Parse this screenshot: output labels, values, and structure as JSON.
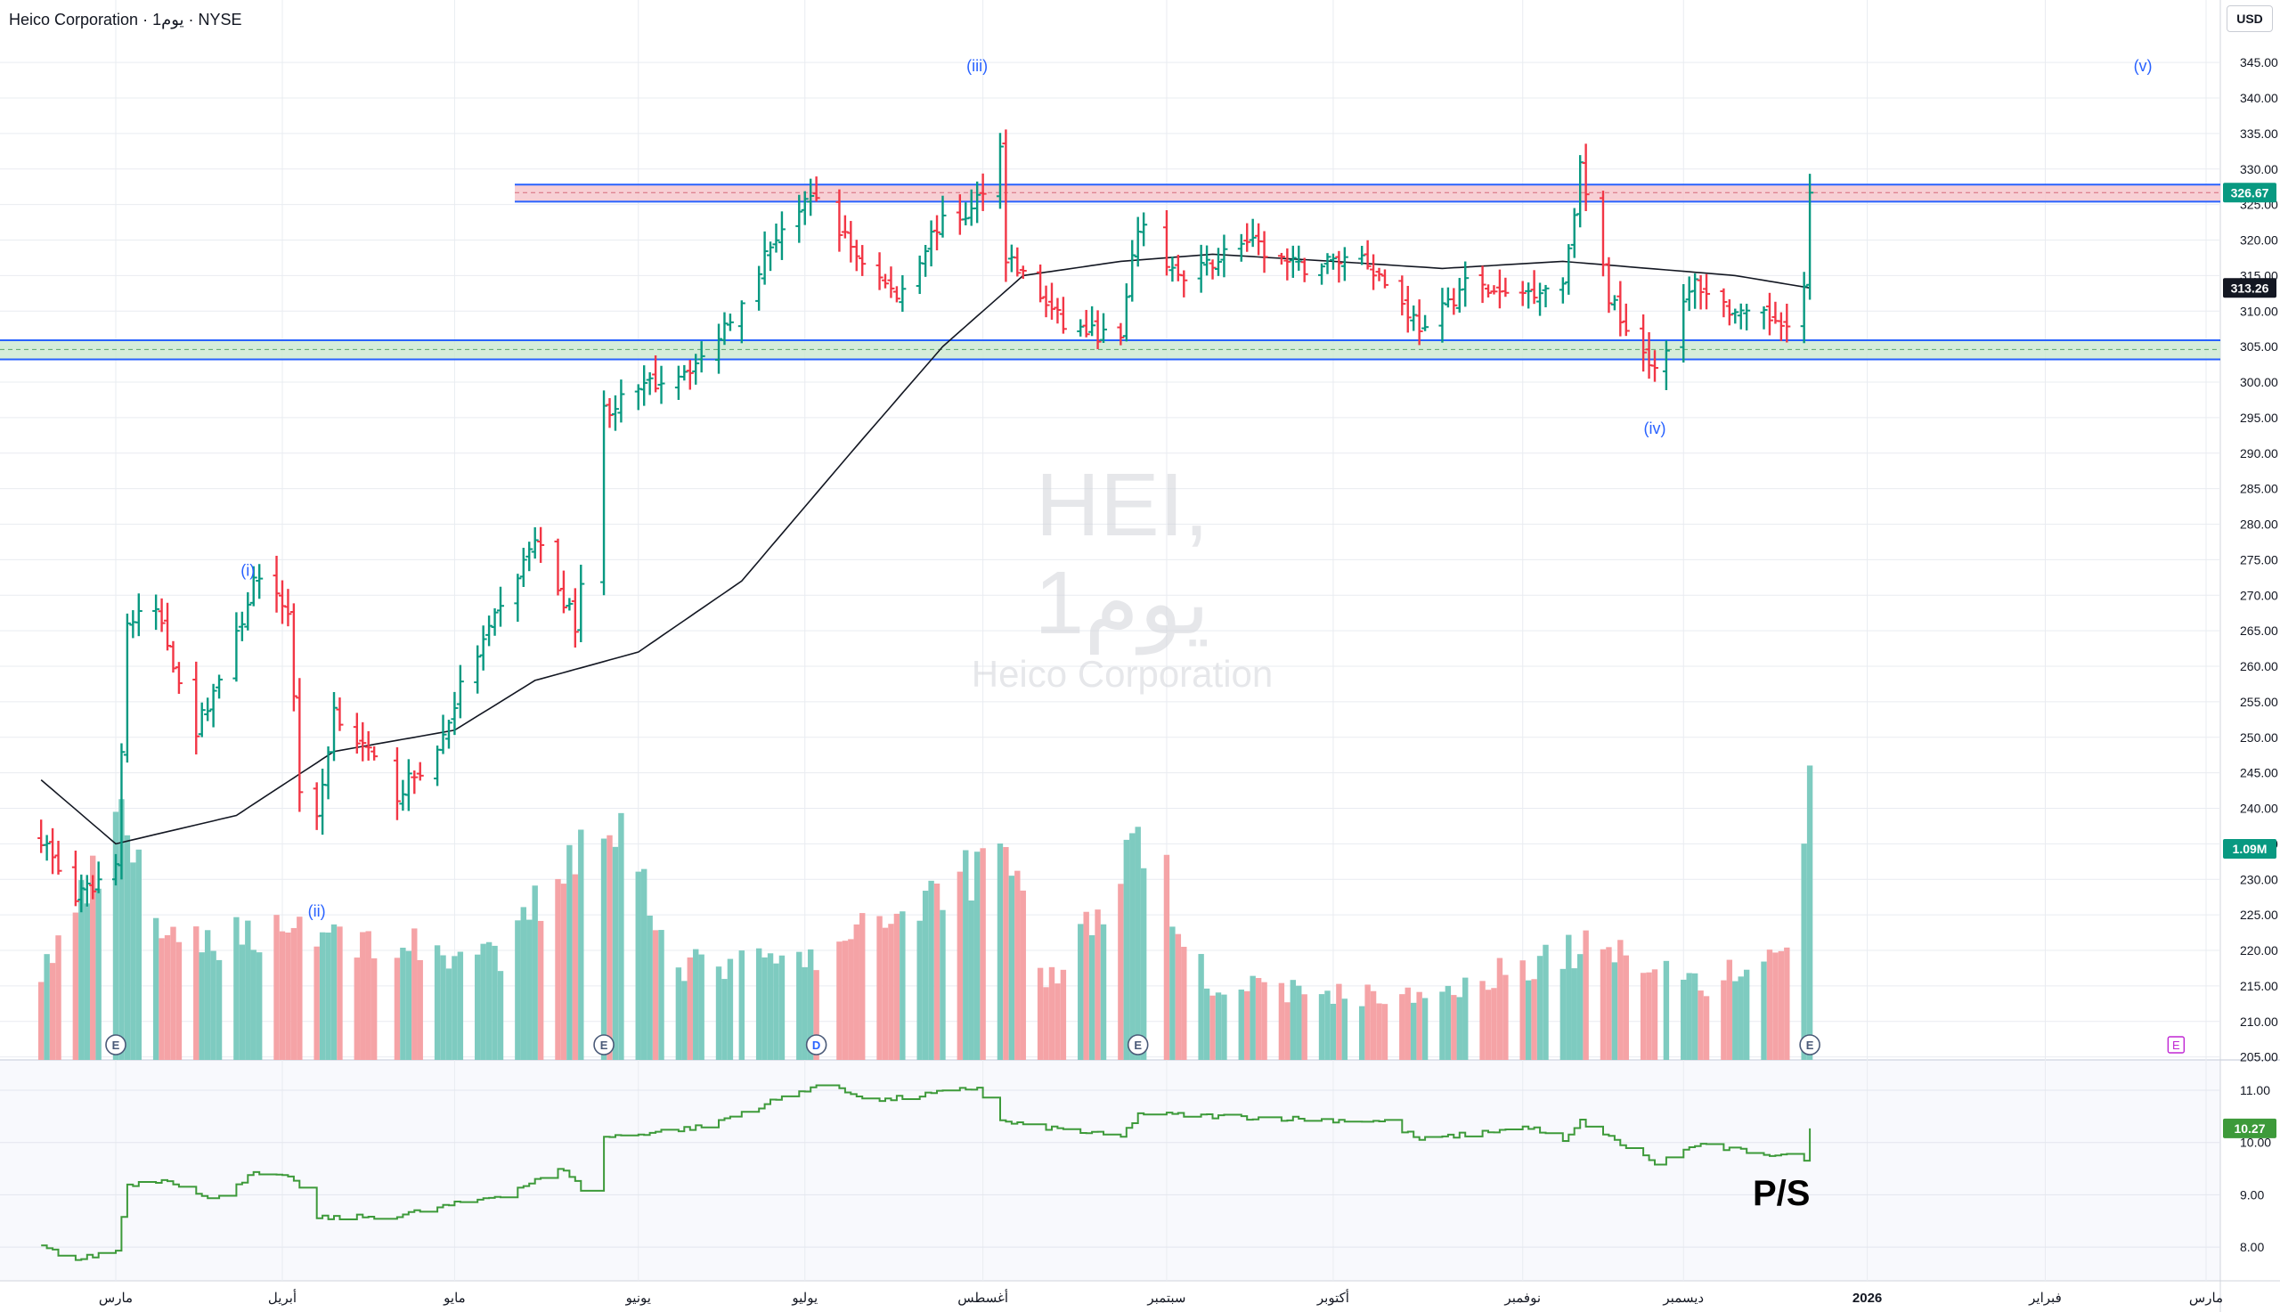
{
  "header": {
    "symbol_title": "Heico Corporation · 1يوم · NYSE",
    "currency": "USD"
  },
  "watermark": {
    "symbol": "HEI, 1يوم",
    "name": "Heico Corporation"
  },
  "indicator_label": "P/S",
  "colors": {
    "up": "#089981",
    "down": "#f23645",
    "vol_up": "#7ecbc0",
    "vol_down": "#f5a3a6",
    "sma": "#131722",
    "ps_line": "#3d9a3a",
    "band_line": "#2962ff",
    "band_fill_top": "#f6c7cc",
    "band_fill_bottom": "#cfead4",
    "wave_label": "#2962ff",
    "last_price_tag": "#089981",
    "sma_tag": "#131722",
    "grid": "#e9ecf1",
    "bg_main": "#ffffff",
    "bg_indicator": "#f8f9fd"
  },
  "chart_data": {
    "type": "ohlc",
    "title": "Heico Corporation · 1يوم · NYSE",
    "symbol": "HEI",
    "timeframe": "1يوم",
    "y_axis": {
      "range": [
        205,
        348
      ],
      "ticks": [
        "345.00",
        "340.00",
        "335.00",
        "330.00",
        "325.00",
        "320.00",
        "315.00",
        "310.00",
        "305.00",
        "300.00",
        "295.00",
        "290.00",
        "285.00",
        "280.00",
        "275.00",
        "270.00",
        "265.00",
        "260.00",
        "255.00",
        "250.00",
        "245.00",
        "240.00",
        "235.00",
        "230.00",
        "225.00",
        "220.00",
        "215.00",
        "210.00",
        "205.00"
      ]
    },
    "x_axis": {
      "labels": [
        {
          "label": "مارس",
          "date": "2025-03-03"
        },
        {
          "label": "أبريل",
          "date": "2025-04-01"
        },
        {
          "label": "مايو",
          "date": "2025-05-01"
        },
        {
          "label": "يونيو",
          "date": "2025-06-02"
        },
        {
          "label": "يوليو",
          "date": "2025-07-01"
        },
        {
          "label": "أغسطس",
          "date": "2025-08-01"
        },
        {
          "label": "سبتمبر",
          "date": "2025-09-02"
        },
        {
          "label": "أكتوبر",
          "date": "2025-10-01"
        },
        {
          "label": "نوفمبر",
          "date": "2025-11-03"
        },
        {
          "label": "ديسمبر",
          "date": "2025-12-01"
        },
        {
          "label": "2026",
          "date": "2026-01-02"
        },
        {
          "label": "فبراير",
          "date": "2026-02-02"
        },
        {
          "label": "مارس",
          "date": "2026-03-02"
        }
      ]
    },
    "price_anchors": [
      {
        "date": "2025-02-18",
        "close": 236
      },
      {
        "date": "2025-02-24",
        "close": 227
      },
      {
        "date": "2025-03-03",
        "close": 232
      },
      {
        "date": "2025-03-05",
        "close": 266
      },
      {
        "date": "2025-03-10",
        "close": 268
      },
      {
        "date": "2025-03-17",
        "close": 251
      },
      {
        "date": "2025-03-24",
        "close": 264
      },
      {
        "date": "2025-03-27",
        "close": 272
      },
      {
        "date": "2025-04-02",
        "close": 268
      },
      {
        "date": "2025-04-04",
        "close": 243
      },
      {
        "date": "2025-04-07",
        "close": 238
      },
      {
        "date": "2025-04-10",
        "close": 254
      },
      {
        "date": "2025-04-21",
        "close": 242
      },
      {
        "date": "2025-04-28",
        "close": 248
      },
      {
        "date": "2025-05-02",
        "close": 257
      },
      {
        "date": "2025-05-09",
        "close": 268
      },
      {
        "date": "2025-05-15",
        "close": 278
      },
      {
        "date": "2025-05-22",
        "close": 266
      },
      {
        "date": "2025-05-27",
        "close": 296
      },
      {
        "date": "2025-06-05",
        "close": 300
      },
      {
        "date": "2025-06-13",
        "close": 303
      },
      {
        "date": "2025-06-20",
        "close": 312
      },
      {
        "date": "2025-06-27",
        "close": 322
      },
      {
        "date": "2025-07-03",
        "close": 326
      },
      {
        "date": "2025-07-10",
        "close": 318
      },
      {
        "date": "2025-07-17",
        "close": 312
      },
      {
        "date": "2025-07-24",
        "close": 322
      },
      {
        "date": "2025-07-30",
        "close": 324
      },
      {
        "date": "2025-08-04",
        "close": 333
      },
      {
        "date": "2025-08-05",
        "close": 318
      },
      {
        "date": "2025-08-15",
        "close": 308
      },
      {
        "date": "2025-08-25",
        "close": 306
      },
      {
        "date": "2025-08-28",
        "close": 322
      },
      {
        "date": "2025-09-05",
        "close": 314
      },
      {
        "date": "2025-09-15",
        "close": 320
      },
      {
        "date": "2025-09-25",
        "close": 316
      },
      {
        "date": "2025-10-06",
        "close": 318
      },
      {
        "date": "2025-10-14",
        "close": 310
      },
      {
        "date": "2025-10-17",
        "close": 307
      },
      {
        "date": "2025-10-24",
        "close": 314
      },
      {
        "date": "2025-10-31",
        "close": 312
      },
      {
        "date": "2025-11-10",
        "close": 314
      },
      {
        "date": "2025-11-13",
        "close": 330
      },
      {
        "date": "2025-11-18",
        "close": 312
      },
      {
        "date": "2025-11-26",
        "close": 302
      },
      {
        "date": "2025-12-03",
        "close": 314
      },
      {
        "date": "2025-12-11",
        "close": 309
      },
      {
        "date": "2025-12-19",
        "close": 309
      },
      {
        "date": "2025-12-22",
        "close": 313.26
      },
      {
        "date": "2025-12-23",
        "close": 326.67
      }
    ],
    "sma_anchors": [
      {
        "date": "2025-02-18",
        "value": 244
      },
      {
        "date": "2025-03-03",
        "value": 235
      },
      {
        "date": "2025-03-24",
        "value": 239
      },
      {
        "date": "2025-04-10",
        "value": 248
      },
      {
        "date": "2025-05-01",
        "value": 251
      },
      {
        "date": "2025-05-15",
        "value": 258
      },
      {
        "date": "2025-06-02",
        "value": 262
      },
      {
        "date": "2025-06-20",
        "value": 272
      },
      {
        "date": "2025-07-10",
        "value": 291
      },
      {
        "date": "2025-07-25",
        "value": 305
      },
      {
        "date": "2025-08-08",
        "value": 315
      },
      {
        "date": "2025-08-25",
        "value": 317
      },
      {
        "date": "2025-09-10",
        "value": 318
      },
      {
        "date": "2025-10-01",
        "value": 317
      },
      {
        "date": "2025-10-20",
        "value": 316
      },
      {
        "date": "2025-11-10",
        "value": 317
      },
      {
        "date": "2025-11-25",
        "value": 316
      },
      {
        "date": "2025-12-10",
        "value": 315
      },
      {
        "date": "2025-12-23",
        "value": 313.26
      }
    ],
    "volume_anchors": [
      {
        "date": "2025-02-18",
        "value": 0.35
      },
      {
        "date": "2025-03-05",
        "value": 0.95
      },
      {
        "date": "2025-03-12",
        "value": 0.45
      },
      {
        "date": "2025-04-04",
        "value": 0.55
      },
      {
        "date": "2025-04-10",
        "value": 0.5
      },
      {
        "date": "2025-05-09",
        "value": 0.4
      },
      {
        "date": "2025-05-27",
        "value": 1.04
      },
      {
        "date": "2025-06-10",
        "value": 0.38
      },
      {
        "date": "2025-07-03",
        "value": 0.4
      },
      {
        "date": "2025-08-01",
        "value": 0.8
      },
      {
        "date": "2025-08-05",
        "value": 0.92
      },
      {
        "date": "2025-08-12",
        "value": 0.3
      },
      {
        "date": "2025-08-27",
        "value": 0.8
      },
      {
        "date": "2025-08-28",
        "value": 0.95
      },
      {
        "date": "2025-09-10",
        "value": 0.3
      },
      {
        "date": "2025-10-15",
        "value": 0.25
      },
      {
        "date": "2025-11-13",
        "value": 0.45
      },
      {
        "date": "2025-11-24",
        "value": 0.42
      },
      {
        "date": "2025-12-05",
        "value": 0.3
      },
      {
        "date": "2025-12-19",
        "value": 0.45
      },
      {
        "date": "2025-12-23",
        "value": 1.09
      }
    ],
    "volume_last": "1.09M",
    "levels": {
      "resistance_band": [
        325.4,
        327.8
      ],
      "resistance_mid": 326.67,
      "support_band": [
        303.2,
        305.9
      ],
      "support_mid": 304.6
    },
    "last_price": "326.67",
    "sma_value": "313.26",
    "wave_labels": [
      {
        "label": "(i)",
        "date": "2025-03-26",
        "price": 273.5
      },
      {
        "label": "(ii)",
        "date": "2025-04-07",
        "price": 225.5
      },
      {
        "label": "(iii)",
        "date": "2025-07-31",
        "price": 344.5
      },
      {
        "label": "(iv)",
        "date": "2025-11-26",
        "price": 293.5
      },
      {
        "label": "(v)",
        "date": "2026-02-19",
        "price": 344.5
      }
    ],
    "event_markers": [
      {
        "kind": "E",
        "date": "2025-03-03"
      },
      {
        "kind": "E",
        "date": "2025-05-27"
      },
      {
        "kind": "D",
        "date": "2025-07-03"
      },
      {
        "kind": "E",
        "date": "2025-08-28"
      },
      {
        "kind": "E",
        "date": "2025-12-23"
      }
    ],
    "future_event": {
      "kind": "E",
      "date": "2026-02-24"
    },
    "ps_indicator": {
      "name": "P/S",
      "y_ticks": [
        "11.00",
        "10.00",
        "9.00",
        "8.00"
      ],
      "range": [
        7.4,
        11.4
      ],
      "last": "10.27",
      "anchors": [
        {
          "date": "2025-02-18",
          "value": 8.0
        },
        {
          "date": "2025-02-24",
          "value": 7.75
        },
        {
          "date": "2025-03-03",
          "value": 7.95
        },
        {
          "date": "2025-03-05",
          "value": 9.2
        },
        {
          "date": "2025-03-12",
          "value": 9.3
        },
        {
          "date": "2025-03-19",
          "value": 8.9
        },
        {
          "date": "2025-03-27",
          "value": 9.4
        },
        {
          "date": "2025-04-03",
          "value": 9.3
        },
        {
          "date": "2025-04-07",
          "value": 8.55
        },
        {
          "date": "2025-04-21",
          "value": 8.6
        },
        {
          "date": "2025-05-09",
          "value": 9.0
        },
        {
          "date": "2025-05-20",
          "value": 9.5
        },
        {
          "date": "2025-05-23",
          "value": 9.1
        },
        {
          "date": "2025-05-27",
          "value": 10.1
        },
        {
          "date": "2025-06-13",
          "value": 10.3
        },
        {
          "date": "2025-07-03",
          "value": 11.1
        },
        {
          "date": "2025-07-14",
          "value": 10.8
        },
        {
          "date": "2025-07-31",
          "value": 11.05
        },
        {
          "date": "2025-08-04",
          "value": 10.4
        },
        {
          "date": "2025-08-25",
          "value": 10.1
        },
        {
          "date": "2025-08-28",
          "value": 10.55
        },
        {
          "date": "2025-10-10",
          "value": 10.4
        },
        {
          "date": "2025-10-16",
          "value": 10.05
        },
        {
          "date": "2025-11-04",
          "value": 10.3
        },
        {
          "date": "2025-11-10",
          "value": 10.0
        },
        {
          "date": "2025-11-13",
          "value": 10.4
        },
        {
          "date": "2025-11-26",
          "value": 9.6
        },
        {
          "date": "2025-12-03",
          "value": 9.95
        },
        {
          "date": "2025-12-22",
          "value": 9.7
        },
        {
          "date": "2025-12-23",
          "value": 10.27
        }
      ]
    }
  }
}
